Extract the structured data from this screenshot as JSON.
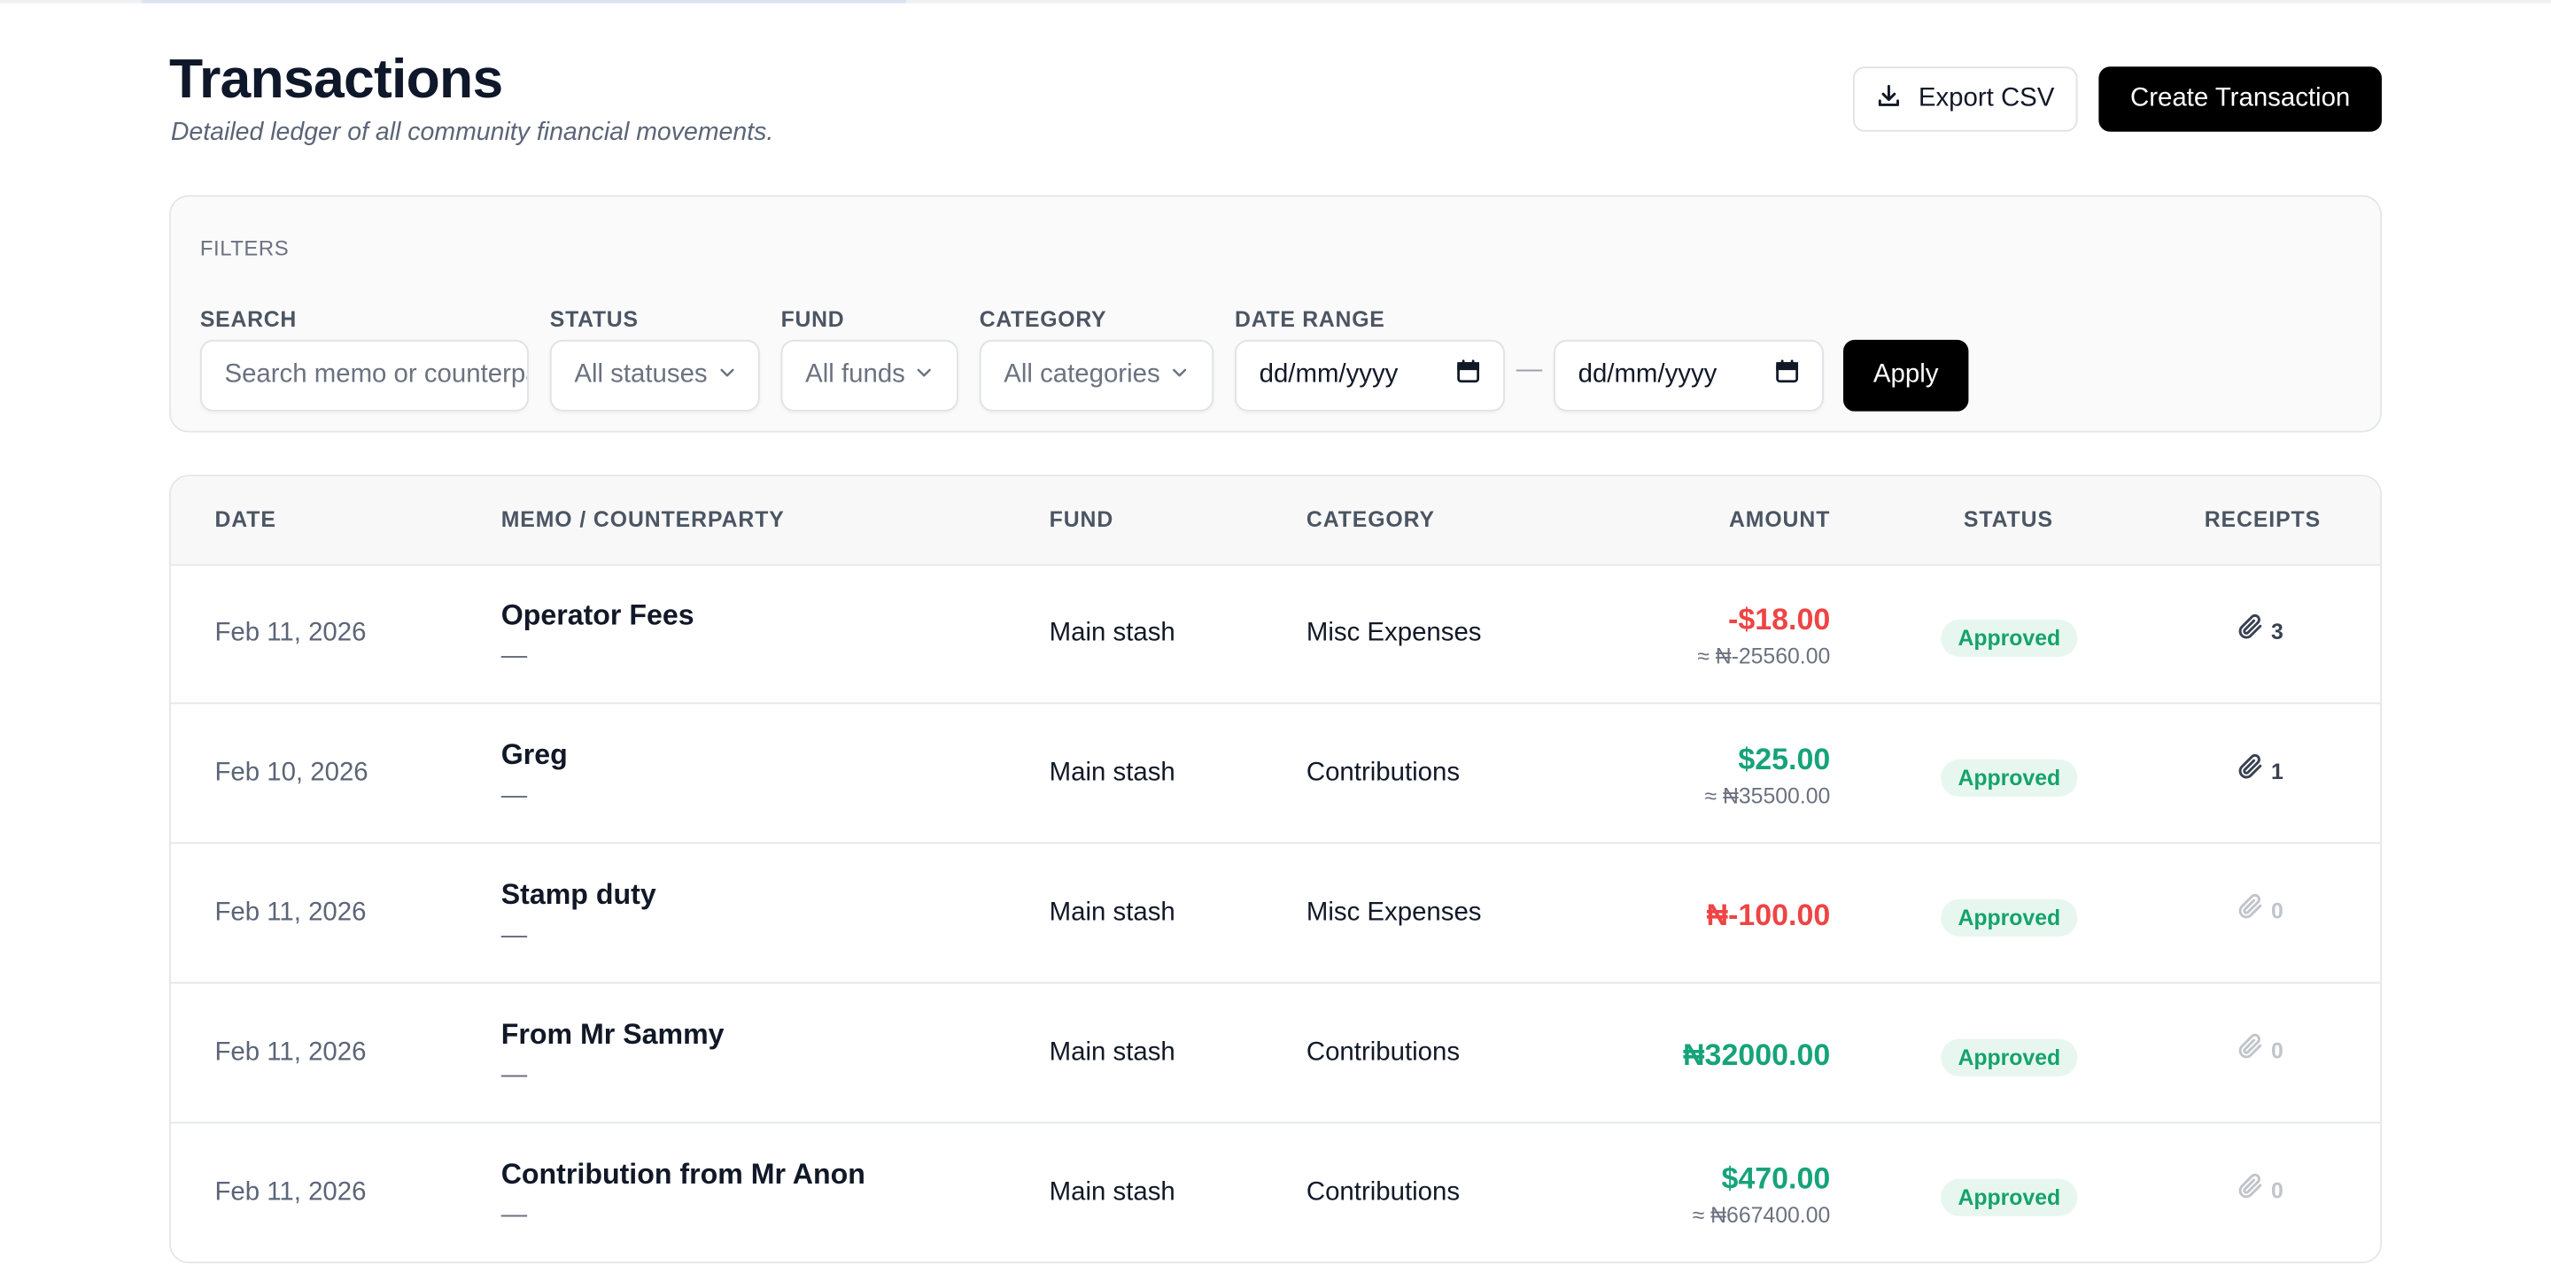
{
  "page": {
    "title": "Transactions",
    "subtitle": "Detailed ledger of all community financial movements."
  },
  "actions": {
    "export_label": "Export CSV",
    "create_label": "Create Transaction"
  },
  "filters": {
    "title": "FILTERS",
    "search_label": "SEARCH",
    "search_placeholder": "Search memo or counterparty",
    "status_label": "STATUS",
    "status_value": "All statuses",
    "fund_label": "FUND",
    "fund_value": "All funds",
    "category_label": "CATEGORY",
    "category_value": "All categories",
    "date_label": "DATE RANGE",
    "date_from": "dd/mm/yyyy",
    "date_to": "dd/mm/yyyy",
    "date_separator": "—",
    "apply_label": "Apply"
  },
  "table": {
    "headers": {
      "date": "DATE",
      "memo": "MEMO / COUNTERPARTY",
      "fund": "FUND",
      "category": "CATEGORY",
      "amount": "AMOUNT",
      "status": "STATUS",
      "receipts": "RECEIPTS"
    },
    "rows": [
      {
        "date": "Feb 11, 2026",
        "memo": "Operator Fees",
        "counterparty": "—",
        "fund": "Main stash",
        "category": "Misc Expenses",
        "amount": "-$18.00",
        "converted": "≈ ₦-25560.00",
        "amount_sign": "negative",
        "status": "Approved",
        "receipts": "3"
      },
      {
        "date": "Feb 10, 2026",
        "memo": "Greg",
        "counterparty": "—",
        "fund": "Main stash",
        "category": "Contributions",
        "amount": "$25.00",
        "converted": "≈ ₦35500.00",
        "amount_sign": "positive",
        "status": "Approved",
        "receipts": "1"
      },
      {
        "date": "Feb 11, 2026",
        "memo": "Stamp duty",
        "counterparty": "—",
        "fund": "Main stash",
        "category": "Misc Expenses",
        "amount": "₦-100.00",
        "converted": "",
        "amount_sign": "negative",
        "status": "Approved",
        "receipts": "0"
      },
      {
        "date": "Feb 11, 2026",
        "memo": "From Mr Sammy",
        "counterparty": "—",
        "fund": "Main stash",
        "category": "Contributions",
        "amount": "₦32000.00",
        "converted": "",
        "amount_sign": "positive",
        "status": "Approved",
        "receipts": "0"
      },
      {
        "date": "Feb 11, 2026",
        "memo": "Contribution from Mr Anon",
        "counterparty": "—",
        "fund": "Main stash",
        "category": "Contributions",
        "amount": "$470.00",
        "converted": "≈ ₦667400.00",
        "amount_sign": "positive",
        "status": "Approved",
        "receipts": "0"
      }
    ]
  },
  "colors": {
    "negative": "#ef4444",
    "positive": "#16a37a",
    "badge_bg": "#e7f7ef",
    "primary_button": "#000000"
  },
  "icons": {
    "export": "download-icon",
    "dropdown": "chevron-down-icon",
    "calendar": "calendar-icon",
    "receipt": "paperclip-icon"
  }
}
